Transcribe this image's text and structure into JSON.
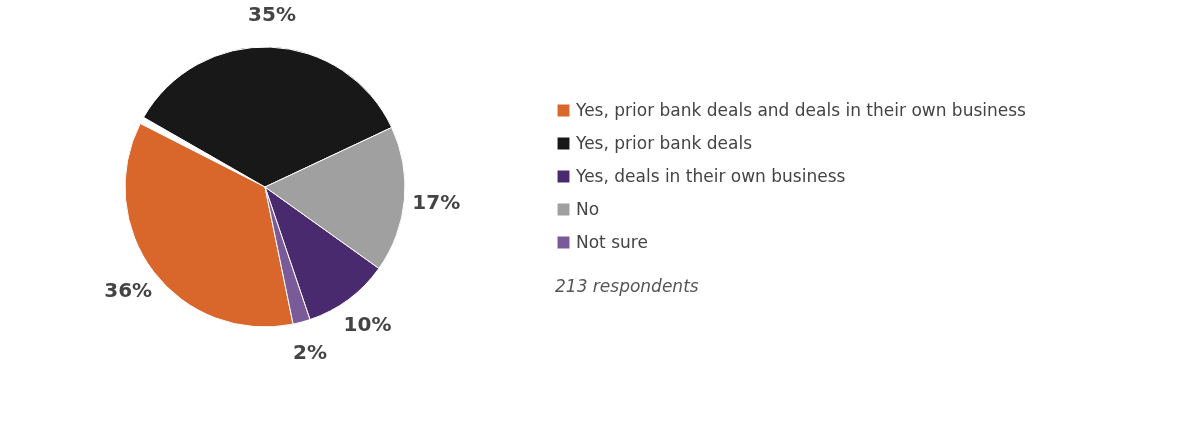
{
  "chart_data": {
    "type": "pie",
    "categories": [
      "Yes, prior bank deals and deals in their own business",
      "Yes, prior bank deals",
      "Yes, deals in their own business",
      "No",
      "Not sure"
    ],
    "values": [
      36,
      35,
      10,
      17,
      2
    ],
    "colors": [
      "#d9662a",
      "#181818",
      "#4a2a6e",
      "#a0a0a0",
      "#7b5a9a"
    ],
    "value_labels": [
      "36%",
      "35%",
      "10%",
      "17%",
      "2%"
    ],
    "legend": "right",
    "annotations": [
      "213 respondents"
    ]
  }
}
